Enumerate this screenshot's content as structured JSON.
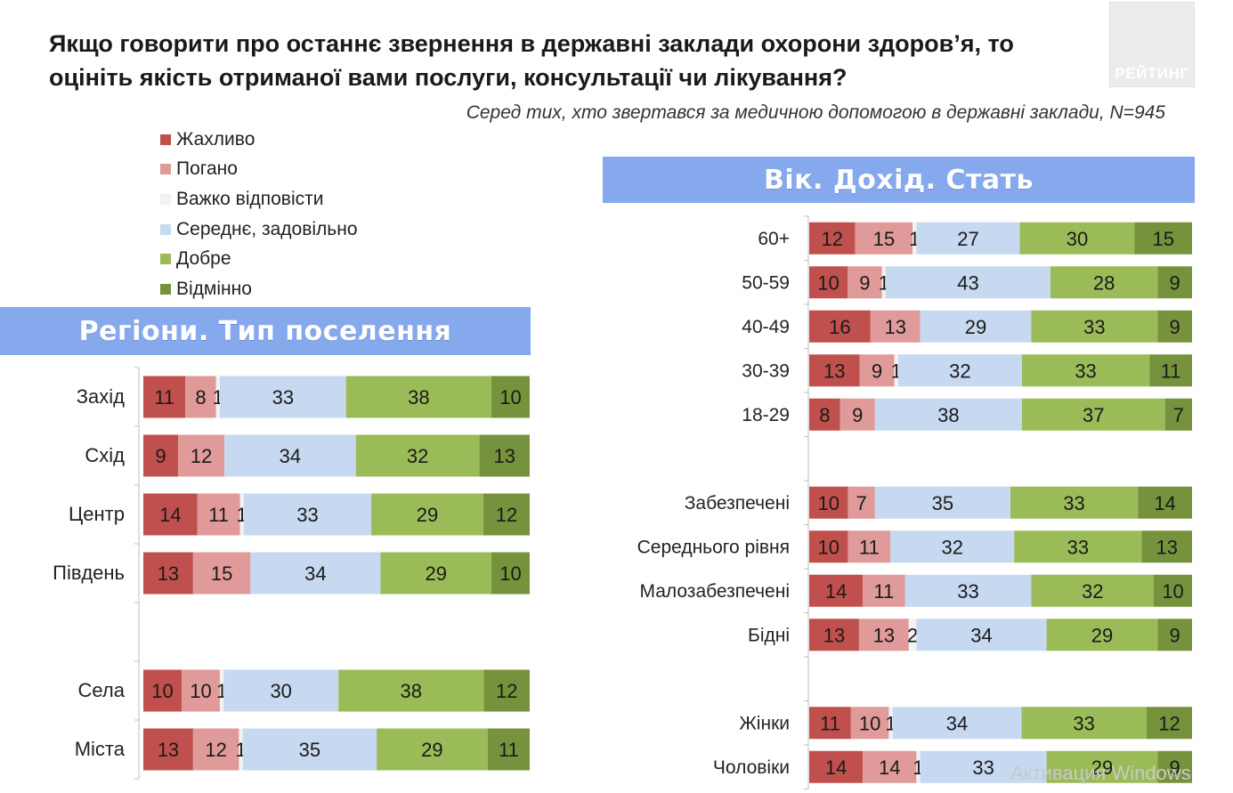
{
  "title": "Якщо говорити про останнє звернення в державні заклади охорони здоров’я, то оцініть якість отриманої вами послуги, консультації чи лікування?",
  "logo_text": "РЕЙТИНГ",
  "subtitle": "Серед тих, хто звертався за медичною допомогою в державні заклади, N=945",
  "banners": {
    "left": "Регіони. Тип поселення",
    "right": "Вік. Дохід. Стать"
  },
  "legend": [
    {
      "label": "Жахливо",
      "color": "#c0504d"
    },
    {
      "label": "Погано",
      "color": "#e09a99"
    },
    {
      "label": "Важко відповісти",
      "color": "#f2f2f2"
    },
    {
      "label": "Середнє, задовільно",
      "color": "#c6d9f1"
    },
    {
      "label": "Добре",
      "color": "#9bbb59"
    },
    {
      "label": "Відмінно",
      "color": "#76923c"
    }
  ],
  "watermark": "Активация Windows",
  "chart_data": [
    {
      "type": "bar",
      "orientation": "horizontal",
      "stacked": true,
      "title": "Регіони. Тип поселення",
      "series_names": [
        "Жахливо",
        "Погано",
        "Важко відповісти",
        "Середнє, задовільно",
        "Добре",
        "Відмінно"
      ],
      "categories": [
        "Захід",
        "Схід",
        "Центр",
        "Південь",
        "",
        "Села",
        "Міста"
      ],
      "values": [
        [
          11,
          8,
          1,
          33,
          38,
          10
        ],
        [
          9,
          12,
          0,
          34,
          32,
          13
        ],
        [
          14,
          11,
          1,
          33,
          29,
          12
        ],
        [
          13,
          15,
          0,
          34,
          29,
          10
        ],
        null,
        [
          10,
          10,
          1,
          30,
          38,
          12
        ],
        [
          13,
          12,
          1,
          35,
          29,
          11
        ]
      ]
    },
    {
      "type": "bar",
      "orientation": "horizontal",
      "stacked": true,
      "title": "Вік. Дохід. Стать",
      "series_names": [
        "Жахливо",
        "Погано",
        "Важко відповісти",
        "Середнє, задовільно",
        "Добре",
        "Відмінно"
      ],
      "categories": [
        "60+",
        "50-59",
        "40-49",
        "30-39",
        "18-29",
        "",
        "Забезпечені",
        "Середнього рівня",
        "Малозабезпечені",
        "Бідні",
        "",
        "Жінки",
        "Чоловіки"
      ],
      "values": [
        [
          12,
          15,
          1,
          27,
          30,
          15
        ],
        [
          10,
          9,
          1,
          43,
          28,
          9
        ],
        [
          16,
          13,
          0,
          29,
          33,
          9
        ],
        [
          13,
          9,
          1,
          32,
          33,
          11
        ],
        [
          8,
          9,
          0,
          38,
          37,
          7
        ],
        null,
        [
          10,
          7,
          0,
          35,
          33,
          14
        ],
        [
          10,
          11,
          0,
          32,
          33,
          13
        ],
        [
          14,
          11,
          0,
          33,
          32,
          10
        ],
        [
          13,
          13,
          2,
          34,
          29,
          9
        ],
        null,
        [
          11,
          10,
          1,
          34,
          33,
          12
        ],
        [
          14,
          14,
          1,
          33,
          29,
          9
        ]
      ]
    }
  ]
}
